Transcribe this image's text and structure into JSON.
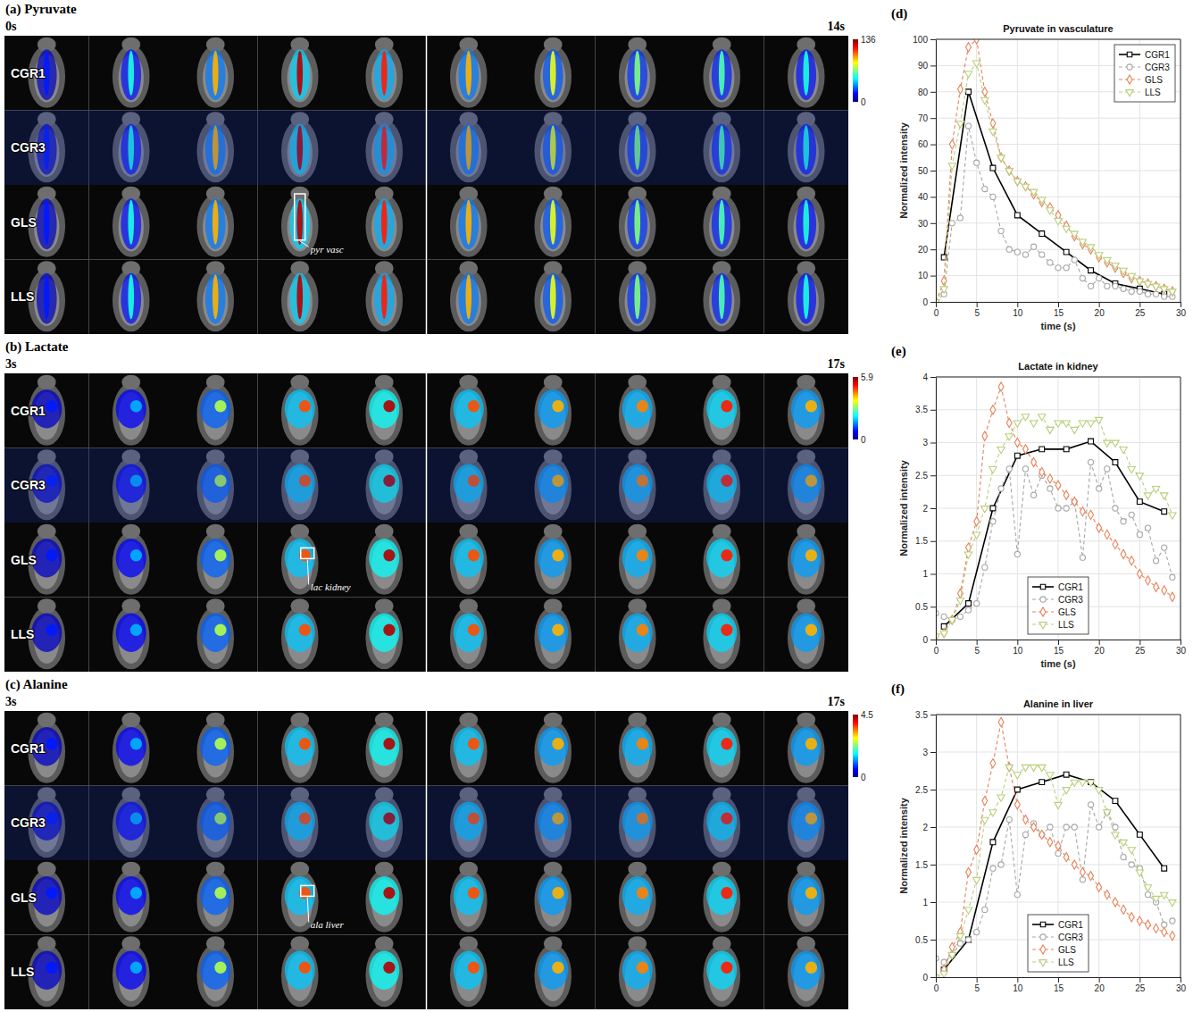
{
  "image_panels": [
    {
      "title": "(a) Pyruvate",
      "start_time": "0s",
      "end_time": "14s",
      "rows": [
        "CGR1",
        "CGR3",
        "GLS",
        "LLS"
      ],
      "colorbar": {
        "range": [
          0,
          136
        ],
        "ticks": [
          0,
          136
        ]
      },
      "annotation": "pyr vasc"
    },
    {
      "title": "(b) Lactate",
      "start_time": "3s",
      "end_time": "17s",
      "rows": [
        "CGR1",
        "CGR3",
        "GLS",
        "LLS"
      ],
      "colorbar": {
        "range": [
          0,
          5.9
        ],
        "ticks": [
          0,
          5.9
        ]
      },
      "annotation": "lac kidney"
    },
    {
      "title": "(c) Alanine",
      "start_time": "3s",
      "end_time": "17s",
      "rows": [
        "CGR1",
        "CGR3",
        "GLS",
        "LLS"
      ],
      "colorbar": {
        "range": [
          0,
          4.5
        ],
        "ticks": [
          0,
          4.5
        ]
      },
      "annotation": "ala liver"
    }
  ],
  "chart_data": [
    {
      "type": "line",
      "panel_label": "(d)",
      "title": "Pyruvate in vasculature",
      "xlabel": "time (s)",
      "ylabel": "Normalized intensity",
      "xlim": [
        0,
        30
      ],
      "xticks": [
        0,
        5,
        10,
        15,
        20,
        25,
        30
      ],
      "ylim": [
        0,
        100
      ],
      "yticks": [
        0,
        10,
        20,
        30,
        40,
        50,
        60,
        70,
        80,
        90,
        100
      ],
      "grid": true,
      "legend": "upper right",
      "series": [
        {
          "name": "CGR1",
          "color": "#000000",
          "marker": "square",
          "line_style": "solid",
          "x": [
            1,
            4,
            7,
            10,
            13,
            16,
            19,
            22,
            25,
            28
          ],
          "values": [
            17,
            80,
            51,
            33,
            26,
            19,
            12,
            7,
            5,
            3
          ]
        },
        {
          "name": "CGR3",
          "color": "#a6a6a6",
          "marker": "circle",
          "line_style": "dashed",
          "x": [
            0,
            1,
            2,
            3,
            4,
            5,
            6,
            7,
            8,
            9,
            10,
            11,
            12,
            13,
            14,
            15,
            16,
            17,
            18,
            19,
            20,
            21,
            22,
            23,
            24,
            25,
            26,
            27,
            28,
            29
          ],
          "values": [
            0,
            3,
            30,
            32,
            67,
            53,
            43,
            40,
            27,
            20,
            19,
            18,
            21,
            18,
            15,
            13,
            13,
            16,
            9,
            6,
            9,
            6,
            6,
            5,
            4,
            4,
            3,
            3,
            2,
            2
          ]
        },
        {
          "name": "GLS",
          "color": "#e8825a",
          "marker": "diamond",
          "line_style": "dashed",
          "x": [
            0,
            1,
            2,
            3,
            4,
            5,
            6,
            7,
            8,
            9,
            10,
            11,
            12,
            13,
            14,
            15,
            16,
            17,
            18,
            19,
            20,
            21,
            22,
            23,
            24,
            25,
            26,
            27,
            28,
            29
          ],
          "values": [
            0,
            8,
            60,
            81,
            97,
            100,
            80,
            68,
            55,
            50,
            46,
            44,
            41,
            38,
            36,
            33,
            29,
            25,
            22,
            20,
            17,
            15,
            13,
            11,
            9,
            8,
            7,
            6,
            5,
            4
          ]
        },
        {
          "name": "LLS",
          "color": "#b8cf7d",
          "marker": "triangle-down",
          "line_style": "dashed",
          "x": [
            0,
            1,
            2,
            3,
            4,
            5,
            6,
            7,
            8,
            9,
            10,
            11,
            12,
            13,
            14,
            15,
            16,
            17,
            18,
            19,
            20,
            21,
            22,
            23,
            24,
            25,
            26,
            27,
            28,
            29
          ],
          "values": [
            0,
            5,
            52,
            68,
            87,
            91,
            77,
            65,
            55,
            50,
            46,
            44,
            42,
            39,
            35,
            31,
            28,
            26,
            23,
            21,
            18,
            16,
            14,
            12,
            10,
            8,
            7,
            6,
            5,
            4
          ]
        }
      ]
    },
    {
      "type": "line",
      "panel_label": "(e)",
      "title": "Lactate in kidney",
      "xlabel": "time (s)",
      "ylabel": "Normalized intensity",
      "xlim": [
        0,
        30
      ],
      "xticks": [
        0,
        5,
        10,
        15,
        20,
        25,
        30
      ],
      "ylim": [
        0,
        4
      ],
      "yticks": [
        0,
        0.5,
        1,
        1.5,
        2,
        2.5,
        3,
        3.5,
        4
      ],
      "grid": true,
      "legend": "lower center",
      "series": [
        {
          "name": "CGR1",
          "color": "#000000",
          "marker": "square",
          "line_style": "solid",
          "x": [
            1,
            4,
            7,
            10,
            13,
            16,
            19,
            22,
            25,
            28
          ],
          "values": [
            0.2,
            0.55,
            2,
            2.8,
            2.9,
            2.9,
            3.02,
            2.7,
            2.1,
            1.95
          ]
        },
        {
          "name": "CGR3",
          "color": "#a6a6a6",
          "marker": "circle",
          "line_style": "dashed",
          "x": [
            0,
            1,
            2,
            3,
            4,
            5,
            6,
            7,
            8,
            9,
            10,
            11,
            12,
            13,
            14,
            15,
            16,
            17,
            18,
            19,
            20,
            21,
            22,
            23,
            24,
            25,
            26,
            27,
            28,
            29
          ],
          "values": [
            0.4,
            0.35,
            0.3,
            0.35,
            0.45,
            0.55,
            1.1,
            1.8,
            2.3,
            2.6,
            1.3,
            2.6,
            2.2,
            2.5,
            2.3,
            2,
            2,
            2.1,
            1.25,
            2.7,
            2.3,
            2.6,
            2,
            1.8,
            1.9,
            1.6,
            1.7,
            1.2,
            1.4,
            0.95
          ]
        },
        {
          "name": "GLS",
          "color": "#e8825a",
          "marker": "diamond",
          "line_style": "dashed",
          "x": [
            0,
            1,
            2,
            3,
            4,
            5,
            6,
            7,
            8,
            9,
            10,
            11,
            12,
            13,
            14,
            15,
            16,
            17,
            18,
            19,
            20,
            21,
            22,
            23,
            24,
            25,
            26,
            27,
            28,
            29
          ],
          "values": [
            0.05,
            0.1,
            0.3,
            0.7,
            1.4,
            1.8,
            3.1,
            3.5,
            3.85,
            3.3,
            3,
            2.9,
            2.7,
            2.55,
            2.45,
            2.35,
            2.2,
            2.1,
            1.95,
            1.9,
            1.7,
            1.6,
            1.45,
            1.3,
            1.2,
            1,
            0.9,
            0.8,
            0.75,
            0.65
          ]
        },
        {
          "name": "LLS",
          "color": "#b8cf7d",
          "marker": "triangle-down",
          "line_style": "dashed",
          "x": [
            0,
            1,
            2,
            3,
            4,
            5,
            6,
            7,
            8,
            9,
            10,
            11,
            12,
            13,
            14,
            15,
            16,
            17,
            18,
            19,
            20,
            21,
            22,
            23,
            24,
            25,
            26,
            27,
            28,
            29
          ],
          "values": [
            0.05,
            0.1,
            0.3,
            0.6,
            1.3,
            1.6,
            2,
            2.6,
            2.9,
            3.1,
            3.3,
            3.4,
            3.3,
            3.4,
            3.2,
            3.3,
            3.3,
            3.2,
            3.3,
            3.3,
            3.35,
            3,
            3,
            2.9,
            2.6,
            2.5,
            2.2,
            2.3,
            2.2,
            1.9
          ]
        }
      ]
    },
    {
      "type": "line",
      "panel_label": "(f)",
      "title": "Alanine in liver",
      "ylabel": "Normalized intensity",
      "xlim": [
        0,
        30
      ],
      "xticks": [
        0,
        5,
        10,
        15,
        20,
        25,
        30
      ],
      "ylim": [
        0,
        3.5
      ],
      "yticks": [
        0,
        0.5,
        1,
        1.5,
        2,
        2.5,
        3,
        3.5
      ],
      "grid": true,
      "legend": "lower center",
      "series": [
        {
          "name": "CGR1",
          "color": "#000000",
          "marker": "square",
          "line_style": "solid",
          "x": [
            1,
            4,
            7,
            10,
            13,
            16,
            19,
            22,
            25,
            28
          ],
          "values": [
            0.1,
            0.5,
            1.8,
            2.5,
            2.6,
            2.7,
            2.6,
            2.35,
            1.9,
            1.45
          ]
        },
        {
          "name": "CGR3",
          "color": "#a6a6a6",
          "marker": "circle",
          "line_style": "dashed",
          "x": [
            0,
            1,
            2,
            3,
            4,
            5,
            6,
            7,
            8,
            9,
            10,
            11,
            12,
            13,
            14,
            15,
            16,
            17,
            18,
            19,
            20,
            21,
            22,
            23,
            24,
            25,
            26,
            27,
            28,
            29
          ],
          "values": [
            0.25,
            0.2,
            0.3,
            0.45,
            0.5,
            0.6,
            0.9,
            1.45,
            1.5,
            2.1,
            1.1,
            1.9,
            2.05,
            1.9,
            2,
            1.65,
            2,
            2,
            1.3,
            2.3,
            2,
            2.2,
            2,
            1.6,
            1.5,
            1.45,
            1.1,
            1,
            0.7,
            0.75
          ]
        },
        {
          "name": "GLS",
          "color": "#e8825a",
          "marker": "diamond",
          "line_style": "dashed",
          "x": [
            0,
            1,
            2,
            3,
            4,
            5,
            6,
            7,
            8,
            9,
            10,
            11,
            12,
            13,
            14,
            15,
            16,
            17,
            18,
            19,
            20,
            21,
            22,
            23,
            24,
            25,
            26,
            27,
            28,
            29
          ],
          "values": [
            0,
            0.1,
            0.4,
            0.6,
            1.4,
            1.7,
            2.35,
            2.85,
            3.4,
            2.8,
            2.3,
            2.1,
            2,
            1.9,
            1.8,
            1.75,
            1.6,
            1.5,
            1.4,
            1.35,
            1.2,
            1.1,
            1,
            0.9,
            0.8,
            0.75,
            0.7,
            0.65,
            0.6,
            0.55
          ]
        },
        {
          "name": "LLS",
          "color": "#b8cf7d",
          "marker": "triangle-down",
          "line_style": "dashed",
          "x": [
            0,
            1,
            2,
            3,
            4,
            5,
            6,
            7,
            8,
            9,
            10,
            11,
            12,
            13,
            14,
            15,
            16,
            17,
            18,
            19,
            20,
            21,
            22,
            23,
            24,
            25,
            26,
            27,
            28,
            29
          ],
          "values": [
            0,
            0.05,
            0.3,
            0.55,
            0.9,
            1.3,
            2.1,
            2.2,
            2.4,
            2.8,
            2.7,
            2.8,
            2.8,
            2.8,
            2.7,
            2.3,
            2.5,
            2.6,
            2.6,
            2.6,
            2.5,
            2.2,
            1.9,
            1.8,
            1.7,
            1.4,
            1.2,
            1.05,
            1.1,
            1
          ]
        }
      ]
    }
  ]
}
